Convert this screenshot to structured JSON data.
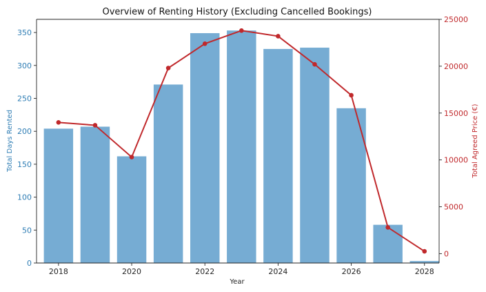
{
  "chart_data": {
    "type": "bar+line",
    "title": "Overview of Renting History (Excluding Cancelled Bookings)",
    "xlabel": "Year",
    "ylabel_left": "Total Days Rented",
    "ylabel_right": "Total Agreed Price (€)",
    "x": [
      2018,
      2019,
      2020,
      2021,
      2022,
      2023,
      2024,
      2025,
      2026,
      2027,
      2028
    ],
    "xticks": [
      "2018",
      "2020",
      "2022",
      "2024",
      "2026",
      "2028"
    ],
    "xlim": [
      2017.4,
      2028.4
    ],
    "ylim_left": [
      0,
      370
    ],
    "ylim_right": [
      -1000,
      25000
    ],
    "yticks_left": [
      "0",
      "50",
      "100",
      "150",
      "200",
      "250",
      "300",
      "350"
    ],
    "yticks_right": [
      "0",
      "5000",
      "10000",
      "15000",
      "20000",
      "25000"
    ],
    "series": [
      {
        "axis": "left",
        "kind": "bar",
        "color": "#76acd3",
        "values": [
          204,
          207,
          162,
          271,
          349,
          353,
          325,
          327,
          235,
          58,
          3
        ]
      },
      {
        "axis": "right",
        "kind": "line",
        "color": "#c0282b",
        "values": [
          14000,
          13700,
          10300,
          19800,
          22400,
          23800,
          23200,
          20200,
          16900,
          2800,
          250
        ]
      }
    ],
    "colors": {
      "left_axis": "#2e7db4",
      "right_axis": "#c0282b"
    },
    "grid": false,
    "legend": "none"
  }
}
